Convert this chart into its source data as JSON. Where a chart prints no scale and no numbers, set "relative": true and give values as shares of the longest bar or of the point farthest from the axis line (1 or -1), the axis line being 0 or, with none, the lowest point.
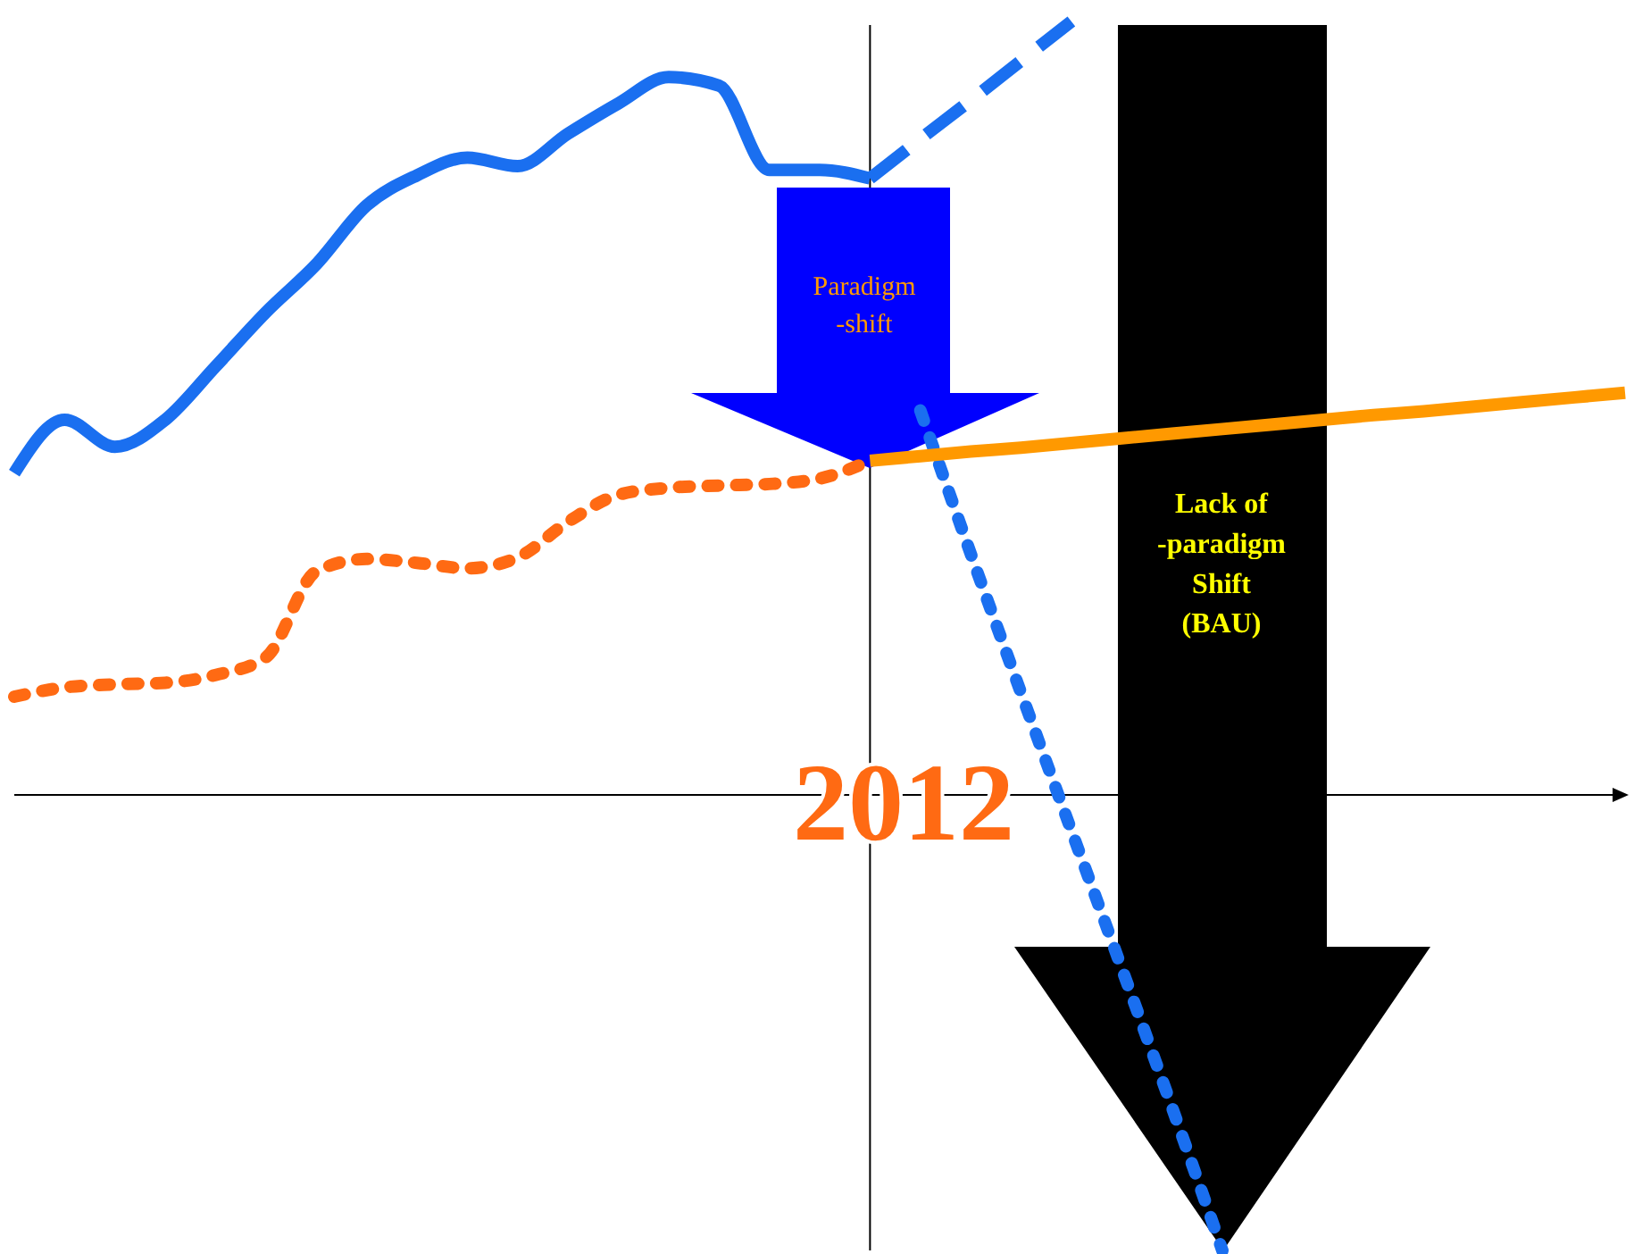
{
  "chart_data": {
    "type": "line",
    "relative": true,
    "categories": [
      null,
      null,
      null,
      null,
      null,
      null,
      null,
      null,
      null,
      null,
      null,
      null,
      null,
      null,
      null,
      null,
      null,
      null,
      null,
      null,
      null,
      null,
      null,
      null,
      null,
      null,
      null,
      null,
      null,
      null,
      null,
      null,
      null
    ],
    "series": [
      {
        "color": "#1a6ff0",
        "line_style": "solid",
        "values": [
          0.416,
          0.485,
          0.45,
          0.485,
          0.554,
          0.624,
          0.686,
          0.762,
          0.801,
          0.824,
          0.813,
          0.855,
          0.894,
          0.928,
          0.917,
          0.808,
          0.808,
          0.797,
          null,
          null,
          null,
          null,
          null,
          null,
          null,
          null,
          null,
          null,
          null,
          null,
          null,
          null,
          null
        ]
      },
      {
        "color": "#1a6ff0",
        "line_style": "dashed",
        "values": [
          null,
          null,
          null,
          null,
          null,
          null,
          null,
          null,
          null,
          null,
          null,
          null,
          null,
          null,
          null,
          null,
          null,
          0.797,
          0.848,
          0.898,
          0.949,
          1,
          null,
          null,
          null,
          null,
          null,
          null,
          null,
          null,
          null,
          null,
          null
        ]
      },
      {
        "color": "#1a6ff0",
        "line_style": "dotted",
        "values": [
          null,
          null,
          null,
          null,
          null,
          null,
          null,
          null,
          null,
          null,
          null,
          null,
          null,
          null,
          null,
          null,
          null,
          null,
          0.497,
          0.312,
          0.132,
          -0.046,
          -0.224,
          -0.404,
          -0.589,
          null,
          null,
          null,
          null,
          null,
          null,
          null,
          null
        ]
      },
      {
        "color": "#ff6a13",
        "line_style": "dotted",
        "values": [
          0.127,
          0.139,
          0.143,
          0.145,
          0.155,
          0.178,
          0.289,
          0.305,
          0.3,
          0.293,
          0.307,
          0.353,
          0.388,
          0.397,
          0.4,
          0.402,
          0.409,
          0.432,
          null,
          null,
          null,
          null,
          null,
          null,
          null,
          null,
          null,
          null,
          null,
          null,
          null,
          null,
          null
        ]
      },
      {
        "color": "#ff9900",
        "line_style": "solid",
        "values": [
          null,
          null,
          null,
          null,
          null,
          null,
          null,
          null,
          null,
          null,
          null,
          null,
          null,
          null,
          null,
          null,
          null,
          0.432,
          0.438,
          0.444,
          0.449,
          0.455,
          0.461,
          0.467,
          0.473,
          0.479,
          0.485,
          0.491,
          0.496,
          0.502,
          0.508,
          0.514,
          0.52
        ]
      }
    ],
    "annotations": [
      "Paradigm\n-shift",
      "Lack of\n-paradigm\nShift\n(BAU)",
      "2012"
    ]
  }
}
